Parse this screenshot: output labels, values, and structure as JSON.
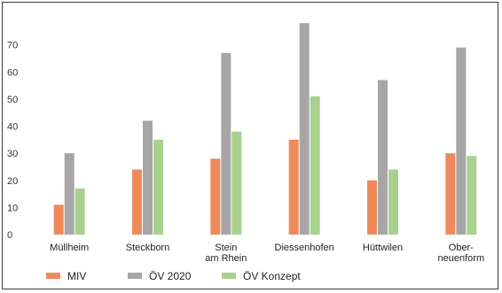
{
  "chart_data": {
    "type": "bar",
    "categories": [
      [
        "Müllheim"
      ],
      [
        "Steckborn"
      ],
      [
        "Stein",
        "am Rhein"
      ],
      [
        "Diessenhofen"
      ],
      [
        "Hüttwilen"
      ],
      [
        "Ober-",
        "neuenform"
      ]
    ],
    "series": [
      {
        "name": "MIV",
        "color": "#ef8a5d",
        "values": [
          11,
          24,
          28,
          35,
          20,
          30
        ]
      },
      {
        "name": "ÖV 2020",
        "color": "#a6a6a6",
        "values": [
          30,
          42,
          67,
          78,
          57,
          69
        ]
      },
      {
        "name": "ÖV Konzept",
        "color": "#a9d18e",
        "values": [
          17,
          35,
          38,
          51,
          24,
          29
        ]
      }
    ],
    "yticks": [
      0,
      10,
      20,
      30,
      40,
      50,
      60,
      70
    ],
    "ylim": [
      0,
      80
    ],
    "grid": false,
    "legend_position": "bottom-left"
  }
}
